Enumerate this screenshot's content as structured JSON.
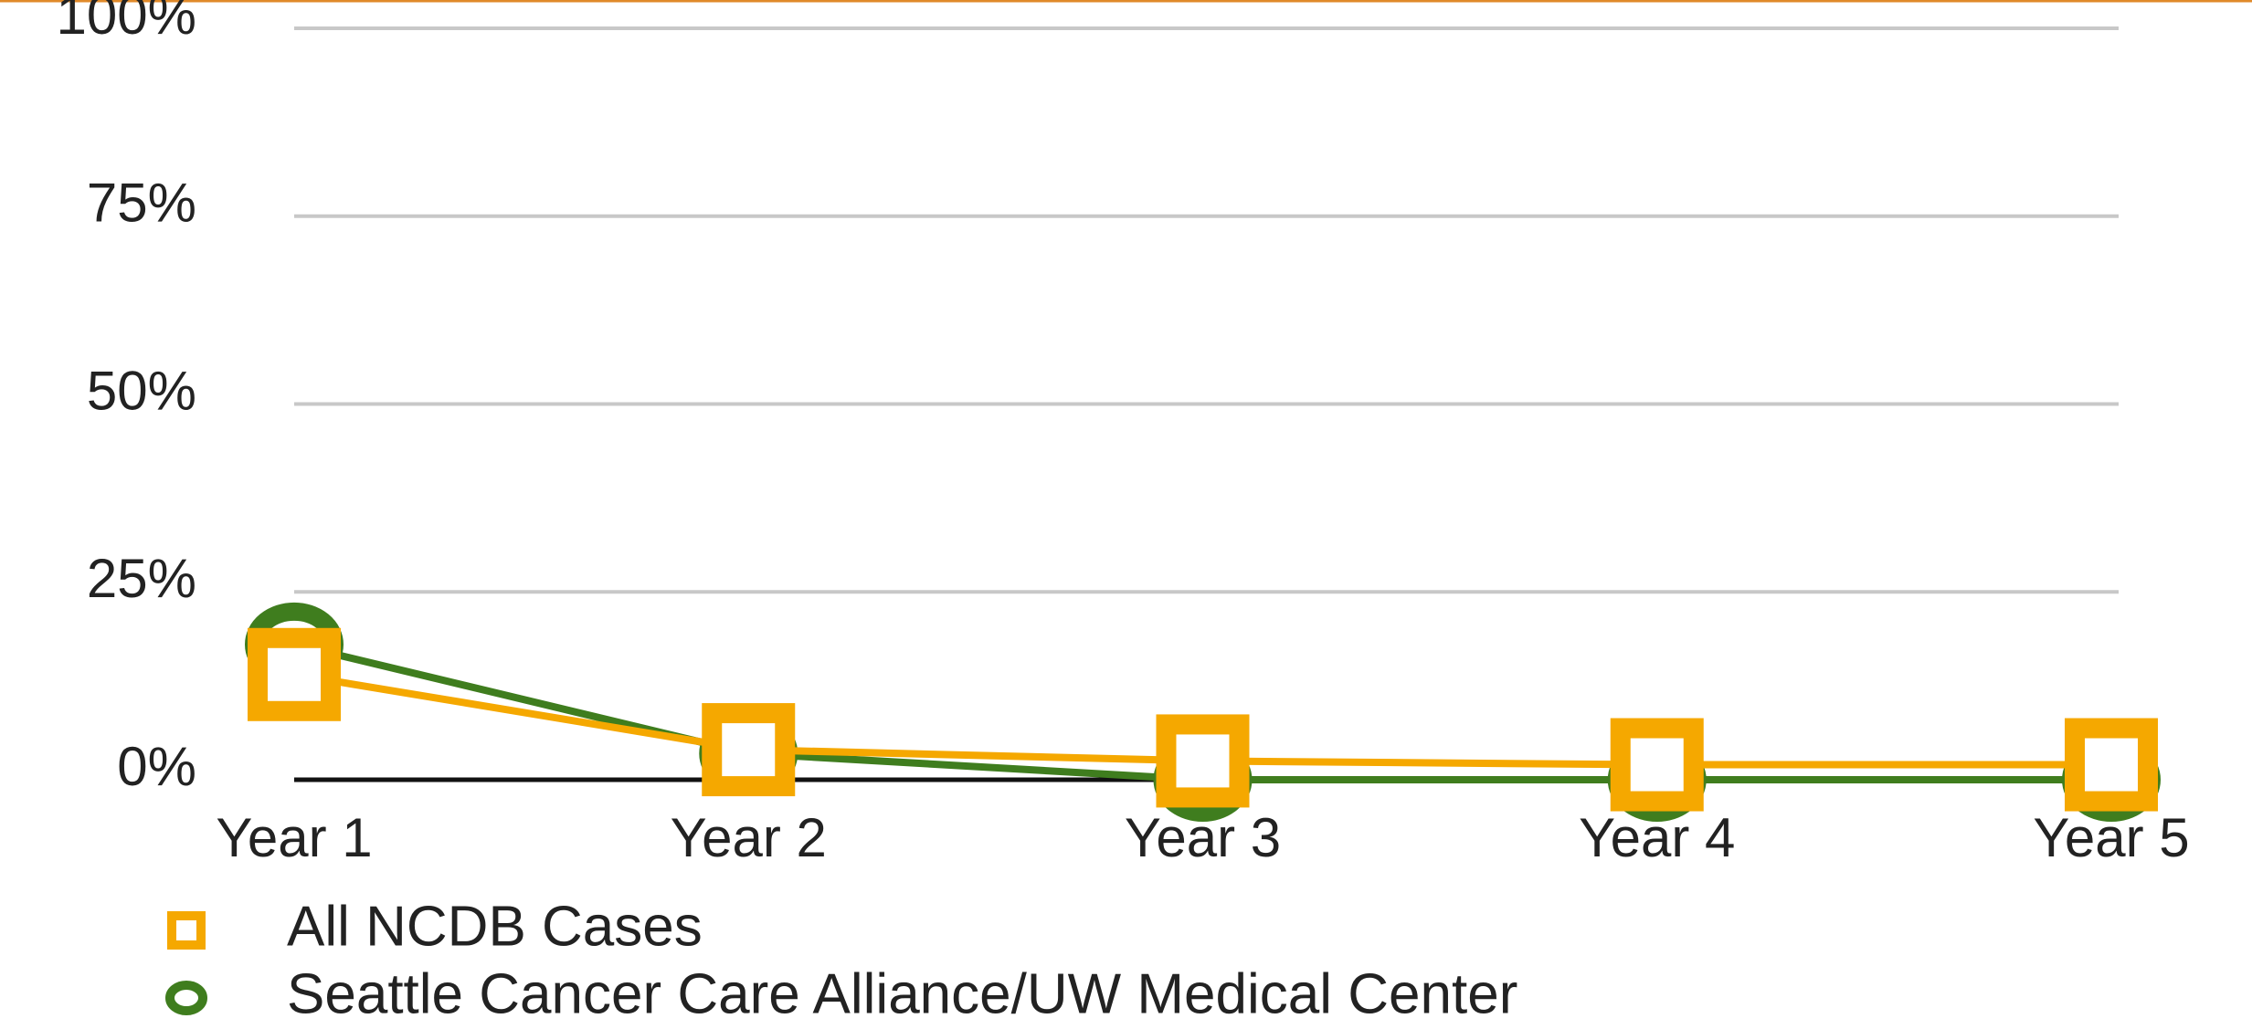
{
  "chart_data": {
    "type": "line",
    "categories": [
      "Year 1",
      "Year 2",
      "Year 3",
      "Year 4",
      "Year 5"
    ],
    "series": [
      {
        "name": "All NCDB Cases",
        "color": "#f5a800",
        "marker": "square",
        "values": [
          14,
          4,
          2.5,
          2,
          2
        ]
      },
      {
        "name": "Seattle Cancer Care Alliance/UW Medical Center",
        "color": "#3f7d1e",
        "marker": "circle",
        "values": [
          18,
          3.5,
          0,
          0,
          0
        ]
      }
    ],
    "ylim": [
      0,
      100
    ],
    "yticks": [
      {
        "value": 0,
        "label": "0%"
      },
      {
        "value": 25,
        "label": "25%"
      },
      {
        "value": 50,
        "label": "50%"
      },
      {
        "value": 75,
        "label": "75%"
      },
      {
        "value": 100,
        "label": "100%"
      }
    ],
    "grid": true
  }
}
